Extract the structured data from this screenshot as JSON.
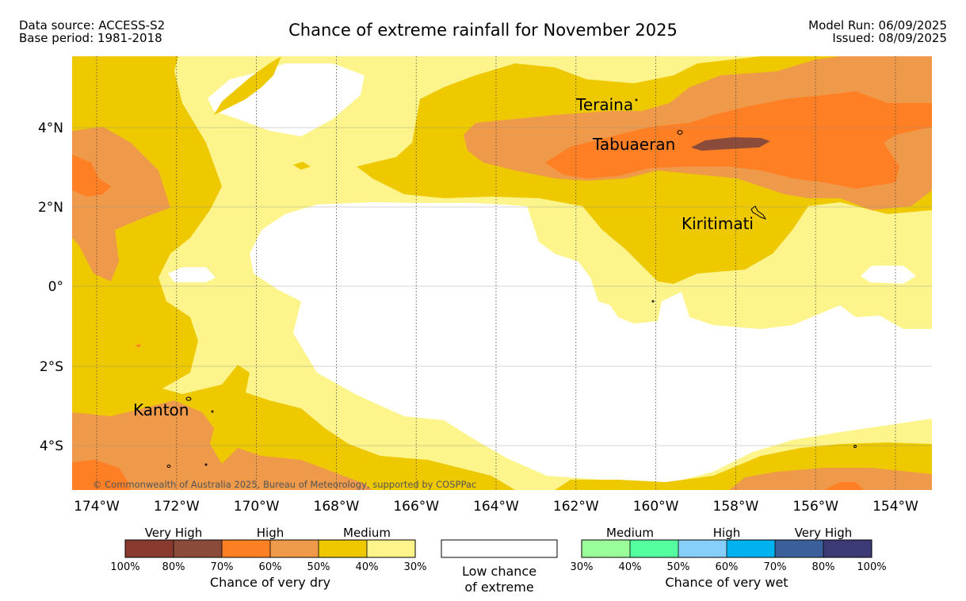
{
  "header": {
    "source_line": "Data source: ACCESS-S2",
    "base_line": "Base period: 1981-2018",
    "title": "Chance of extreme rainfall for November 2025",
    "model_run": "Model Run: 06/09/2025",
    "issued": "Issued: 08/09/2025"
  },
  "map": {
    "lon_labels": [
      "174°W",
      "172°W",
      "170°W",
      "168°W",
      "166°W",
      "164°W",
      "162°W",
      "160°W",
      "158°W",
      "156°W",
      "154°W"
    ],
    "lat_labels": [
      "4°N",
      "2°N",
      "0°",
      "2°S",
      "4°S"
    ],
    "places": [
      {
        "name": "Teraina"
      },
      {
        "name": "Tabuaeran"
      },
      {
        "name": "Kiritimati"
      },
      {
        "name": "Kanton"
      }
    ],
    "copyright": "© Commonwealth of Australia 2025, Bureau of Meteorology, supported by COSPPac",
    "colors": {
      "dry_very_high_1": "#8b3a2f",
      "dry_very_high_2": "#8b4b3a",
      "dry_high_1": "#ff7f24",
      "dry_high_2": "#ee9a4a",
      "dry_medium_1": "#eec900",
      "dry_medium_2": "#fdf58c",
      "low": "#ffffff",
      "wet_medium_1": "#9aff9a",
      "wet_medium_2": "#54ff9f",
      "wet_high_1": "#87cefa",
      "wet_high_2": "#00b2ee",
      "wet_very_high_1": "#3a5f9a",
      "wet_very_high_2": "#3d3a78"
    }
  },
  "legend": {
    "dry": {
      "headers": [
        "Very High",
        "High",
        "Medium"
      ],
      "ticks": [
        "100%",
        "80%",
        "70%",
        "60%",
        "50%",
        "40%",
        "30%"
      ],
      "caption": "Chance of very dry"
    },
    "low": {
      "caption_line1": "Low chance",
      "caption_line2": "of extreme"
    },
    "wet": {
      "headers": [
        "Medium",
        "High",
        "Very High"
      ],
      "ticks": [
        "30%",
        "40%",
        "50%",
        "60%",
        "70%",
        "80%",
        "100%"
      ],
      "caption": "Chance of very wet"
    }
  }
}
